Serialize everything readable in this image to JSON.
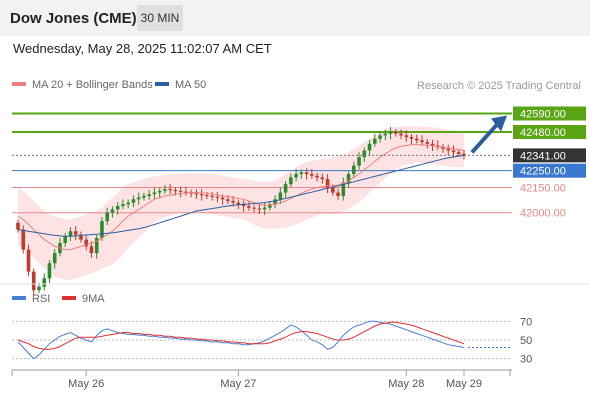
{
  "header": {
    "title": "Dow Jones (CME)",
    "interval": "30 MIN"
  },
  "datetime": "Wednesday, May 28, 2025 11:02:07 AM CET",
  "legend": {
    "ma20_label": "MA 20 + Bollinger Bands",
    "ma50_label": "MA 50",
    "credit": "Research © 2025 Trading Central"
  },
  "rsi_legend": {
    "rsi_label": "RSI",
    "ma_label": "9MA"
  },
  "colors": {
    "resistance": "#5aa514",
    "pivot": "#3a78d0",
    "support": "#e8878a",
    "current": "#333333",
    "candle_up": "#2e8a2e",
    "candle_down": "#c0392b",
    "ma20": "#f08080",
    "ma50": "#2c5fa0",
    "band": "#fcd9d9",
    "rsi": "#4a7fd8",
    "rsi_ma": "#e03030",
    "arrow": "#2a5f9e"
  },
  "chart_data": [
    {
      "type": "candlestick",
      "x_tick_labels": [
        "May 26",
        "May 27",
        "May 28",
        "May 29"
      ],
      "ylim": [
        41600,
        42700
      ],
      "levels": [
        {
          "value": 42590,
          "label": "42590.00",
          "kind": "resistance"
        },
        {
          "value": 42480,
          "label": "42480.00",
          "kind": "resistance"
        },
        {
          "value": 42341,
          "label": "42341.00",
          "kind": "current"
        },
        {
          "value": 42250,
          "label": "42250.00",
          "kind": "pivot"
        },
        {
          "value": 42150,
          "label": "42150.00",
          "kind": "support"
        },
        {
          "value": 42000,
          "label": "42000.00",
          "kind": "support"
        }
      ],
      "close": [
        41900,
        41780,
        41650,
        41540,
        41560,
        41610,
        41700,
        41760,
        41820,
        41860,
        41890,
        41870,
        41840,
        41800,
        41760,
        41850,
        41950,
        42000,
        42020,
        42040,
        42050,
        42060,
        42080,
        42090,
        42100,
        42110,
        42120,
        42130,
        42140,
        42135,
        42130,
        42125,
        42120,
        42115,
        42110,
        42105,
        42100,
        42095,
        42090,
        42080,
        42070,
        42060,
        42050,
        42040,
        42030,
        42025,
        42020,
        42030,
        42050,
        42080,
        42120,
        42170,
        42210,
        42230,
        42240,
        42230,
        42220,
        42210,
        42200,
        42150,
        42120,
        42100,
        42180,
        42230,
        42280,
        42330,
        42370,
        42410,
        42440,
        42460,
        42470,
        42480,
        42470,
        42460,
        42450,
        42440,
        42430,
        42420,
        42410,
        42400,
        42390,
        42380,
        42370,
        42360,
        42350,
        42341
      ],
      "ma20": [
        41980,
        41960,
        41930,
        41900,
        41870,
        41840,
        41820,
        41800,
        41790,
        41780,
        41780,
        41790,
        41800,
        41810,
        41820,
        41830,
        41850,
        41870,
        41890,
        41920,
        41950,
        41980,
        42000,
        42020,
        42040,
        42060,
        42080,
        42090,
        42100,
        42105,
        42110,
        42115,
        42118,
        42120,
        42120,
        42118,
        42115,
        42110,
        42105,
        42100,
        42095,
        42090,
        42085,
        42080,
        42070,
        42060,
        42050,
        42045,
        42045,
        42050,
        42060,
        42070,
        42085,
        42100,
        42115,
        42130,
        42140,
        42150,
        42155,
        42160,
        42160,
        42165,
        42175,
        42190,
        42210,
        42230,
        42255,
        42280,
        42305,
        42330,
        42350,
        42370,
        42385,
        42395,
        42400,
        42405,
        42405,
        42405,
        42400,
        42398,
        42395,
        42390,
        42385,
        42380,
        42375,
        42370
      ],
      "ma20_band_upper": [
        42150,
        42130,
        42100,
        42070,
        42040,
        42010,
        41990,
        41980,
        41970,
        41960,
        41960,
        41970,
        41980,
        41990,
        42000,
        42010,
        42030,
        42060,
        42090,
        42120,
        42150,
        42170,
        42180,
        42190,
        42200,
        42210,
        42215,
        42220,
        42225,
        42228,
        42230,
        42232,
        42234,
        42235,
        42235,
        42234,
        42232,
        42230,
        42225,
        42220,
        42215,
        42210,
        42205,
        42200,
        42195,
        42190,
        42185,
        42182,
        42185,
        42195,
        42210,
        42230,
        42250,
        42270,
        42290,
        42300,
        42310,
        42315,
        42320,
        42325,
        42330,
        42335,
        42345,
        42360,
        42380,
        42400,
        42420,
        42440,
        42460,
        42480,
        42495,
        42505,
        42510,
        42512,
        42515,
        42515,
        42514,
        42512,
        42510,
        42508,
        42505,
        42500,
        42495,
        42490,
        42480,
        42470
      ],
      "ma20_band_lower": [
        41810,
        41790,
        41760,
        41730,
        41700,
        41670,
        41650,
        41620,
        41610,
        41600,
        41600,
        41610,
        41620,
        41630,
        41640,
        41650,
        41670,
        41680,
        41690,
        41720,
        41750,
        41790,
        41820,
        41850,
        41880,
        41910,
        41945,
        41960,
        41975,
        41982,
        41990,
        41998,
        42002,
        42005,
        42005,
        42002,
        41998,
        41990,
        41985,
        41980,
        41975,
        41970,
        41965,
        41960,
        41945,
        41930,
        41915,
        41908,
        41905,
        41905,
        41910,
        41910,
        41920,
        41930,
        41940,
        41960,
        41970,
        41985,
        41990,
        41995,
        41990,
        41995,
        42005,
        42020,
        42040,
        42060,
        42090,
        42120,
        42150,
        42180,
        42205,
        42235,
        42260,
        42278,
        42285,
        42295,
        42296,
        42298,
        42290,
        42288,
        42285,
        42280,
        42275,
        42270,
        42270,
        42270
      ],
      "ma50": [
        41900,
        41895,
        41890,
        41885,
        41880,
        41875,
        41870,
        41865,
        41862,
        41860,
        41860,
        41862,
        41865,
        41868,
        41870,
        41872,
        41875,
        41878,
        41880,
        41885,
        41890,
        41895,
        41900,
        41905,
        41912,
        41920,
        41930,
        41940,
        41950,
        41960,
        41970,
        41980,
        41990,
        42000,
        42010,
        42015,
        42020,
        42025,
        42030,
        42035,
        42040,
        42045,
        42048,
        42050,
        42052,
        42055,
        42058,
        42060,
        42065,
        42070,
        42078,
        42085,
        42092,
        42100,
        42108,
        42115,
        42122,
        42130,
        42138,
        42145,
        42152,
        42160,
        42168,
        42176,
        42184,
        42192,
        42200,
        42208,
        42216,
        42224,
        42232,
        42240,
        42248,
        42256,
        42264,
        42272,
        42280,
        42288,
        42296,
        42304,
        42312,
        42320,
        42326,
        42332,
        42337,
        42341
      ],
      "rsi": [
        48,
        42,
        36,
        30,
        34,
        40,
        46,
        50,
        54,
        56,
        58,
        55,
        52,
        50,
        48,
        55,
        60,
        62,
        60,
        58,
        57,
        56,
        56,
        55,
        55,
        54,
        54,
        53,
        53,
        52,
        52,
        51,
        51,
        50,
        50,
        49,
        49,
        48,
        48,
        47,
        47,
        46,
        46,
        45,
        45,
        46,
        47,
        49,
        52,
        55,
        58,
        62,
        66,
        64,
        60,
        55,
        50,
        48,
        45,
        40,
        42,
        48,
        55,
        60,
        64,
        66,
        68,
        70,
        70,
        69,
        68,
        67,
        65,
        63,
        61,
        59,
        57,
        55,
        53,
        51,
        49,
        47,
        45,
        44,
        43,
        42
      ],
      "rsi_ma": [
        50,
        48,
        46,
        43,
        41,
        40,
        40,
        41,
        43,
        46,
        49,
        52,
        53,
        53,
        53,
        53,
        54,
        55,
        56,
        57,
        58,
        58,
        57,
        57,
        56,
        56,
        55,
        55,
        54,
        54,
        53,
        53,
        52,
        52,
        51,
        51,
        50,
        50,
        49,
        49,
        48,
        48,
        47,
        47,
        46,
        46,
        46,
        46,
        47,
        49,
        51,
        53,
        56,
        58,
        59,
        59,
        58,
        57,
        55,
        53,
        51,
        50,
        50,
        51,
        53,
        56,
        59,
        62,
        65,
        67,
        68,
        69,
        69,
        68,
        67,
        66,
        64,
        62,
        60,
        58,
        56,
        54,
        52,
        50,
        48,
        46
      ],
      "rsi_ylim": [
        20,
        80
      ],
      "rsi_levels": [
        70,
        50,
        30
      ]
    }
  ]
}
